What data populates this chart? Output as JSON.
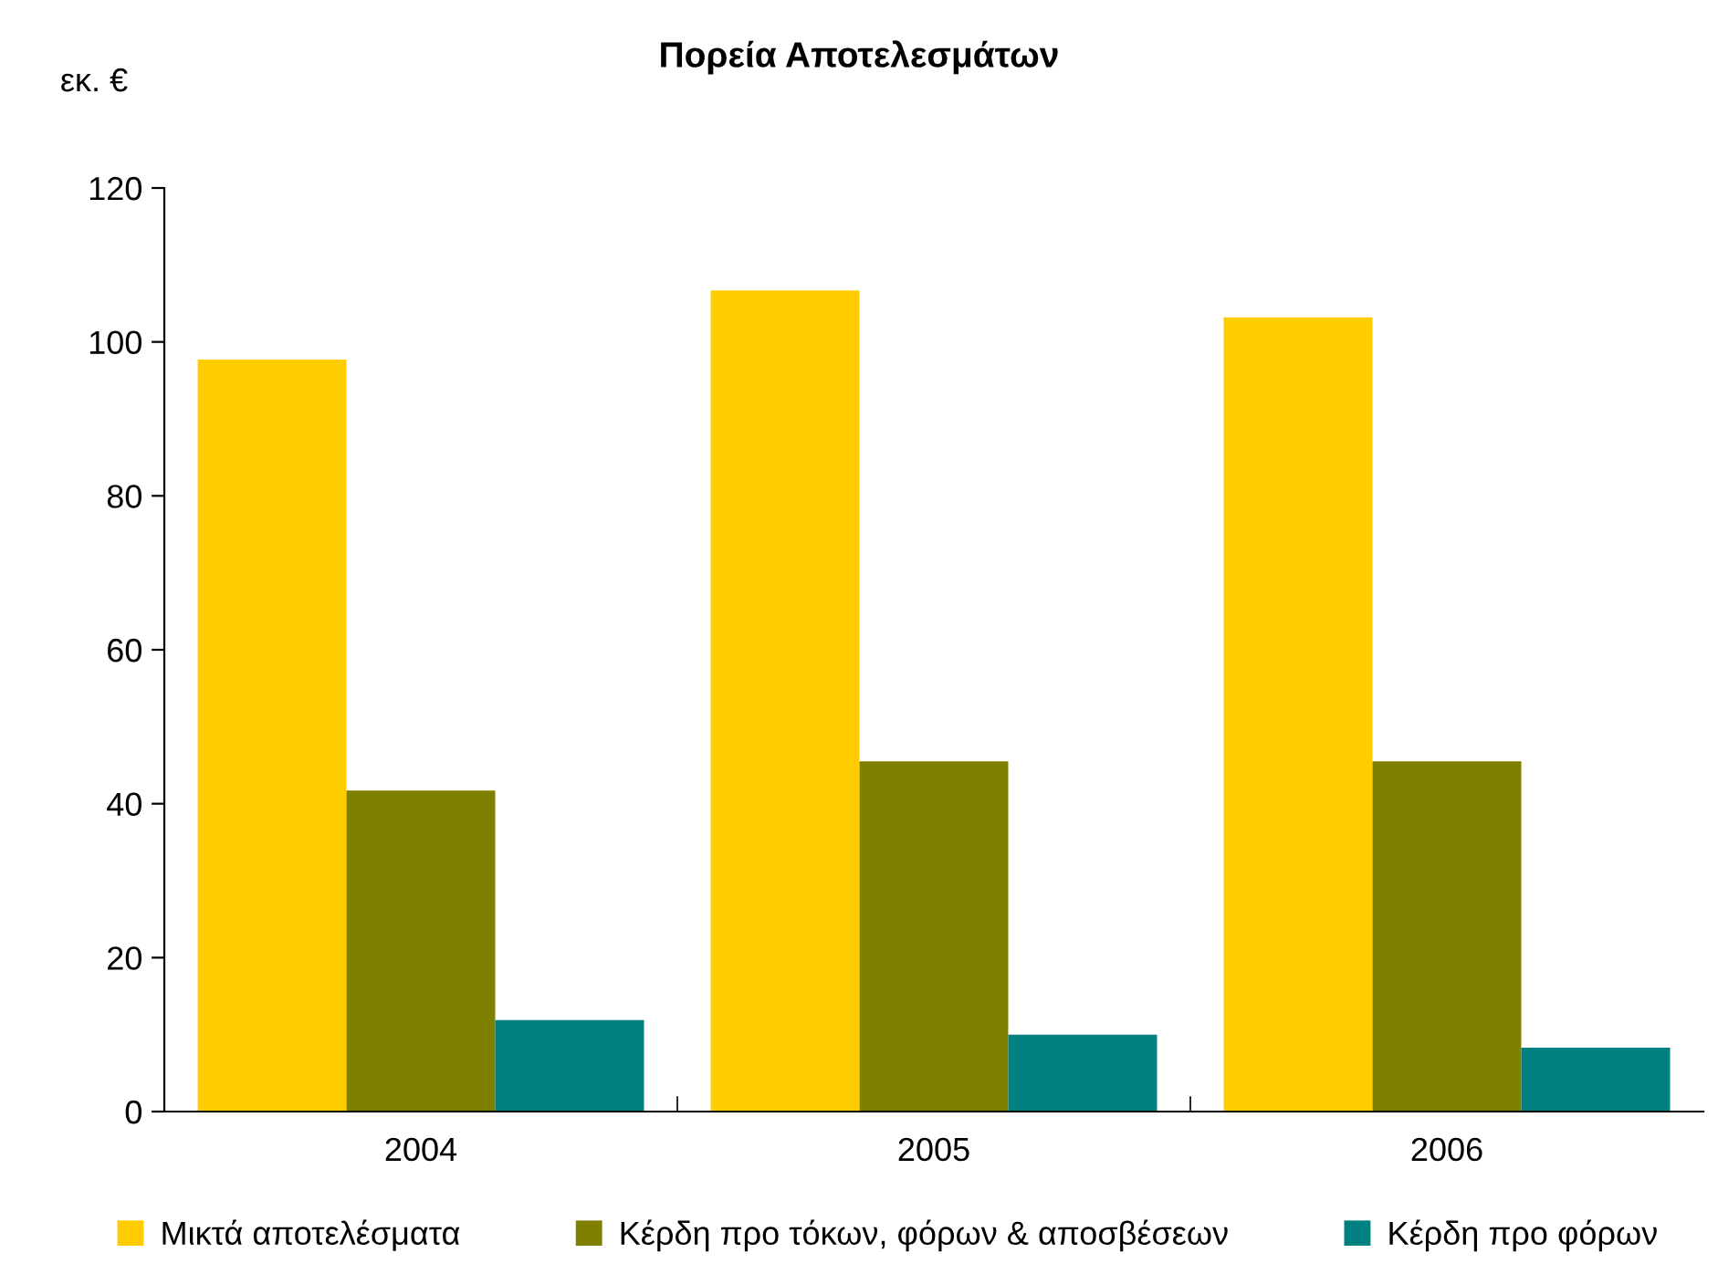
{
  "chart_data": {
    "type": "bar",
    "title": "Πορεία Αποτελεσμάτων",
    "ylabel": "εκ. €",
    "categories": [
      "2004",
      "2005",
      "2006"
    ],
    "series": [
      {
        "name": "Μικτά αποτελέσματα",
        "color": "#ffcc00",
        "values": [
          97.7,
          106.7,
          103.2
        ]
      },
      {
        "name": "Κέρδη προ τόκων, φόρων & αποσβέσεων",
        "color": "#808000",
        "values": [
          41.7,
          45.5,
          45.5
        ]
      },
      {
        "name": "Κέρδη προ φόρων",
        "color": "#008080",
        "values": [
          11.9,
          10.0,
          8.3
        ]
      }
    ],
    "ylim": [
      0,
      120
    ],
    "yticks": [
      0,
      20,
      40,
      60,
      80,
      100,
      120
    ],
    "grid": false,
    "legend": "bottom"
  }
}
